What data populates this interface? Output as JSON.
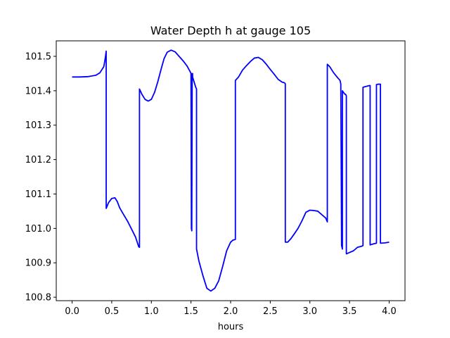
{
  "chart_data": {
    "type": "line",
    "title": "Water Depth h at gauge 105",
    "xlabel": "hours",
    "ylabel": "",
    "xlim": [
      -0.2,
      4.2
    ],
    "ylim": [
      100.79,
      101.545
    ],
    "xticks": [
      0.0,
      0.5,
      1.0,
      1.5,
      2.0,
      2.5,
      3.0,
      3.5,
      4.0
    ],
    "xtick_labels": [
      "0.0",
      "0.5",
      "1.0",
      "1.5",
      "2.0",
      "2.5",
      "3.0",
      "3.5",
      "4.0"
    ],
    "yticks": [
      100.8,
      100.9,
      101.0,
      101.1,
      101.2,
      101.3,
      101.4,
      101.5
    ],
    "ytick_labels": [
      "100.8",
      "100.9",
      "101.0",
      "101.1",
      "101.2",
      "101.3",
      "101.4",
      "101.5"
    ],
    "grid": false,
    "series": [
      {
        "color": "#0000ff",
        "x": [
          0.0,
          0.1,
          0.2,
          0.3,
          0.35,
          0.4,
          0.42,
          0.43,
          0.43,
          0.46,
          0.5,
          0.54,
          0.57,
          0.6,
          0.65,
          0.7,
          0.75,
          0.8,
          0.84,
          0.85,
          0.85,
          0.88,
          0.92,
          0.96,
          1.0,
          1.04,
          1.08,
          1.12,
          1.16,
          1.2,
          1.25,
          1.3,
          1.35,
          1.4,
          1.45,
          1.49,
          1.5,
          1.505,
          1.51,
          1.515,
          1.52,
          1.52,
          1.56,
          1.57,
          1.57,
          1.6,
          1.65,
          1.7,
          1.75,
          1.8,
          1.85,
          1.9,
          1.95,
          2.0,
          2.03,
          2.06,
          2.06,
          2.1,
          2.15,
          2.2,
          2.25,
          2.3,
          2.35,
          2.4,
          2.45,
          2.5,
          2.55,
          2.6,
          2.65,
          2.68,
          2.69,
          2.69,
          2.72,
          2.76,
          2.8,
          2.85,
          2.9,
          2.95,
          3.0,
          3.05,
          3.1,
          3.15,
          3.2,
          3.22,
          3.22,
          3.25,
          3.3,
          3.35,
          3.38,
          3.39,
          3.4,
          3.41,
          3.41,
          3.44,
          3.45,
          3.46,
          3.46,
          3.48,
          3.5,
          3.55,
          3.6,
          3.65,
          3.67,
          3.67,
          3.7,
          3.75,
          3.76,
          3.76,
          3.8,
          3.84,
          3.84,
          3.86,
          3.89,
          3.89,
          3.95,
          4.0
        ],
        "y": [
          101.44,
          101.44,
          101.441,
          101.445,
          101.452,
          101.47,
          101.497,
          101.515,
          101.058,
          101.075,
          101.087,
          101.089,
          101.078,
          101.06,
          101.04,
          101.021,
          100.998,
          100.975,
          100.947,
          100.945,
          101.405,
          101.39,
          101.375,
          101.37,
          101.375,
          101.395,
          101.425,
          101.46,
          101.493,
          101.512,
          101.518,
          101.513,
          101.5,
          101.487,
          101.472,
          101.455,
          101.45,
          101.0,
          100.993,
          101.45,
          101.45,
          101.44,
          101.41,
          101.405,
          100.94,
          100.905,
          100.863,
          100.826,
          100.818,
          100.826,
          100.848,
          100.89,
          100.935,
          100.96,
          100.966,
          100.968,
          101.43,
          101.44,
          101.46,
          101.473,
          101.485,
          101.495,
          101.497,
          101.49,
          101.477,
          101.462,
          101.448,
          101.433,
          101.425,
          101.423,
          101.42,
          100.96,
          100.96,
          100.97,
          100.983,
          101.0,
          101.022,
          101.047,
          101.053,
          101.052,
          101.05,
          101.04,
          101.03,
          101.019,
          101.477,
          101.47,
          101.452,
          101.438,
          101.43,
          101.42,
          100.95,
          100.94,
          101.4,
          101.39,
          101.39,
          101.385,
          100.926,
          100.928,
          100.93,
          100.935,
          100.945,
          100.948,
          100.95,
          101.41,
          101.412,
          101.415,
          101.415,
          100.952,
          100.955,
          100.957,
          101.418,
          101.419,
          101.419,
          100.957,
          100.958,
          100.96
        ]
      }
    ]
  }
}
